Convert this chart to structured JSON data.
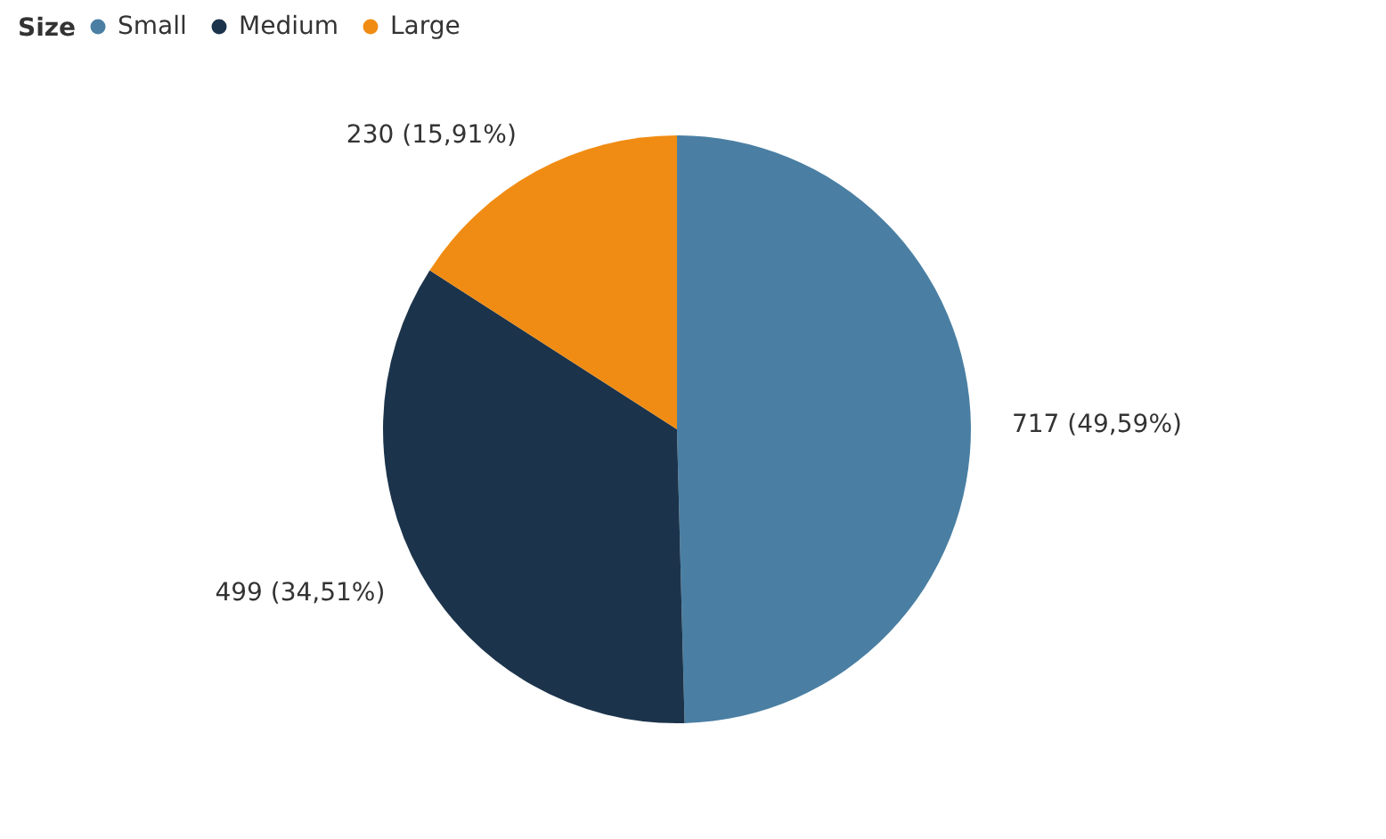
{
  "chart_data": {
    "type": "pie",
    "legend_title": "Size",
    "categories": [
      "Small",
      "Medium",
      "Large"
    ],
    "values": [
      717,
      499,
      230
    ],
    "colors": [
      "#4a7fa3",
      "#1c344b",
      "#f08c13"
    ],
    "value_labels": [
      "717 (49,59%)",
      "499 (34,51%)",
      "230 (15,91%)"
    ],
    "legend": "top left"
  }
}
